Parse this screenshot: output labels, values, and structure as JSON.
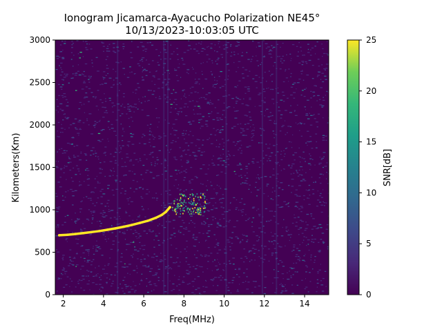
{
  "chart_data": {
    "type": "heatmap",
    "title": "Ionogram Jicamarca-Ayacucho Polarization NE45°",
    "subtitle": "10/13/2023-10:03:05 UTC",
    "xlabel": "Freq(MHz)",
    "ylabel": "Kilometers(Km)",
    "xlim": [
      1.6,
      15.2
    ],
    "ylim": [
      0,
      3000
    ],
    "x_ticks": [
      2,
      4,
      6,
      8,
      10,
      12,
      14
    ],
    "y_ticks": [
      0,
      500,
      1000,
      1500,
      2000,
      2500,
      3000
    ],
    "colorbar": {
      "label": "SNR[dB]",
      "range": [
        0,
        25
      ],
      "ticks": [
        0,
        5,
        10,
        15,
        20,
        25
      ],
      "colormap": "viridis"
    },
    "grid": false,
    "trace": {
      "series_label": "",
      "x": [
        1.8,
        2.2,
        2.6,
        3.0,
        3.4,
        3.8,
        4.2,
        4.6,
        5.0,
        5.4,
        5.8,
        6.2,
        6.6,
        6.9,
        7.1,
        7.3
      ],
      "y": [
        700,
        706,
        715,
        725,
        737,
        750,
        765,
        781,
        800,
        820,
        845,
        870,
        905,
        940,
        975,
        1030
      ]
    },
    "scatter_region": {
      "x_range": [
        7.4,
        9.1
      ],
      "y_range": [
        950,
        1200
      ]
    }
  }
}
